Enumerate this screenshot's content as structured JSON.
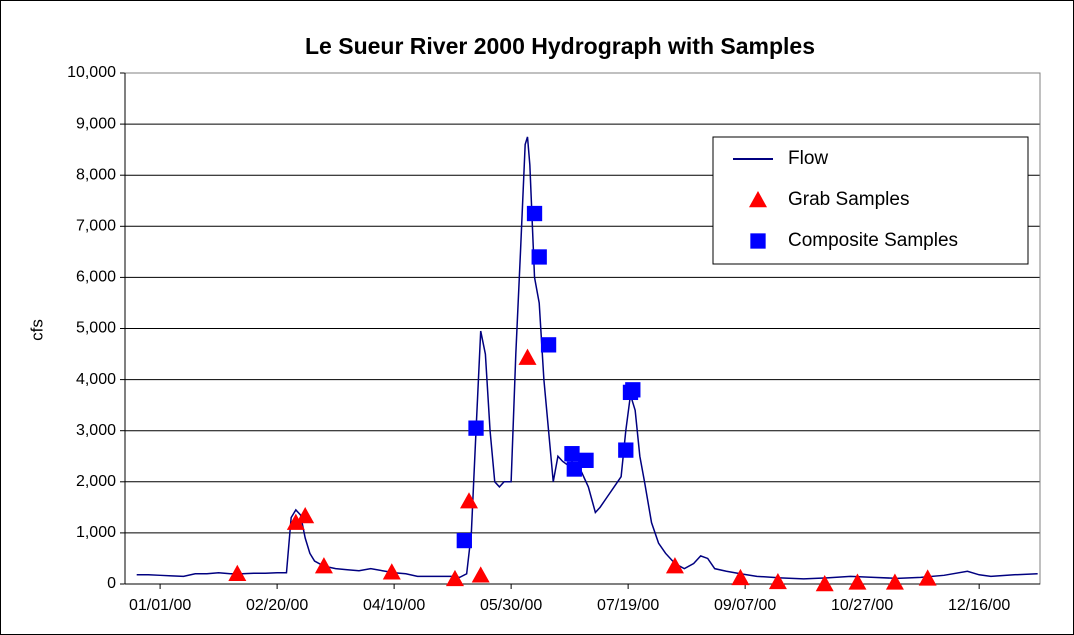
{
  "chart_data": {
    "type": "line",
    "title": "Le Sueur River 2000 Hydrograph with Samples",
    "ylabel": "cfs",
    "xlim": [
      -15,
      376
    ],
    "xticks": [
      {
        "value": 0,
        "label": "01/01/00"
      },
      {
        "value": 50,
        "label": "02/20/00"
      },
      {
        "value": 100,
        "label": "04/10/00"
      },
      {
        "value": 150,
        "label": "05/30/00"
      },
      {
        "value": 200,
        "label": "07/19/00"
      },
      {
        "value": 250,
        "label": "09/07/00"
      },
      {
        "value": 300,
        "label": "10/27/00"
      },
      {
        "value": 350,
        "label": "12/16/00"
      }
    ],
    "ylim": [
      0,
      10000
    ],
    "yticks": [
      {
        "value": 0,
        "label": "0"
      },
      {
        "value": 1000,
        "label": "1,000"
      },
      {
        "value": 2000,
        "label": "2,000"
      },
      {
        "value": 3000,
        "label": "3,000"
      },
      {
        "value": 4000,
        "label": "4,000"
      },
      {
        "value": 5000,
        "label": "5,000"
      },
      {
        "value": 6000,
        "label": "6,000"
      },
      {
        "value": 7000,
        "label": "7,000"
      },
      {
        "value": 8000,
        "label": "8,000"
      },
      {
        "value": 9000,
        "label": "9,000"
      },
      {
        "value": 10000,
        "label": "10,000"
      }
    ],
    "grid": true,
    "legend": "upper right",
    "series": [
      {
        "name": "Flow",
        "color": "#000080",
        "marker": "line",
        "x": [
          -10,
          -5,
          0,
          5,
          10,
          15,
          20,
          25,
          30,
          35,
          40,
          45,
          50,
          54,
          56,
          58,
          60,
          62,
          64,
          66,
          70,
          75,
          80,
          85,
          90,
          95,
          100,
          105,
          110,
          115,
          120,
          125,
          128,
          131,
          133,
          135,
          137,
          139,
          141,
          143,
          145,
          147,
          150,
          152,
          154,
          156,
          157,
          158,
          160,
          162,
          164,
          166,
          168,
          170,
          172,
          175,
          178,
          180,
          183,
          186,
          188,
          191,
          194,
          197,
          199,
          201,
          203,
          205,
          207,
          210,
          213,
          216,
          220,
          224,
          228,
          231,
          234,
          237,
          242,
          248,
          255,
          265,
          275,
          285,
          295,
          305,
          315,
          325,
          335,
          345,
          350,
          355,
          365,
          375
        ],
        "values": [
          180,
          180,
          170,
          160,
          150,
          200,
          200,
          220,
          200,
          200,
          210,
          210,
          220,
          220,
          1300,
          1450,
          1350,
          900,
          600,
          450,
          350,
          300,
          280,
          260,
          300,
          260,
          220,
          200,
          150,
          150,
          150,
          150,
          130,
          200,
          1000,
          3000,
          4950,
          4500,
          3000,
          2000,
          1900,
          2000,
          2000,
          4500,
          6500,
          8600,
          8750,
          8200,
          6000,
          5500,
          4000,
          3000,
          2000,
          2500,
          2400,
          2300,
          2600,
          2200,
          1900,
          1400,
          1500,
          1700,
          1900,
          2100,
          3000,
          3700,
          3400,
          2500,
          2000,
          1200,
          800,
          600,
          400,
          300,
          400,
          550,
          500,
          300,
          250,
          200,
          150,
          120,
          100,
          120,
          150,
          130,
          110,
          130,
          170,
          250,
          180,
          150,
          180,
          200
        ]
      },
      {
        "name": "Grab Samples",
        "color": "#ff0000",
        "marker": "triangle",
        "x": [
          33,
          58,
          62,
          70,
          99,
          126,
          132,
          137,
          157,
          220,
          248,
          264,
          284,
          298,
          314,
          328
        ],
        "values": [
          200,
          1200,
          1330,
          350,
          230,
          100,
          1620,
          170,
          4430,
          350,
          120,
          40,
          0,
          30,
          30,
          110
        ]
      },
      {
        "name": "Composite Samples",
        "color": "#0000ff",
        "marker": "square",
        "x": [
          130,
          135,
          160,
          162,
          166,
          176,
          177,
          182,
          199,
          201,
          202
        ],
        "values": [
          850,
          3050,
          7250,
          6400,
          4680,
          2550,
          2250,
          2420,
          2620,
          3750,
          3800
        ]
      }
    ]
  }
}
